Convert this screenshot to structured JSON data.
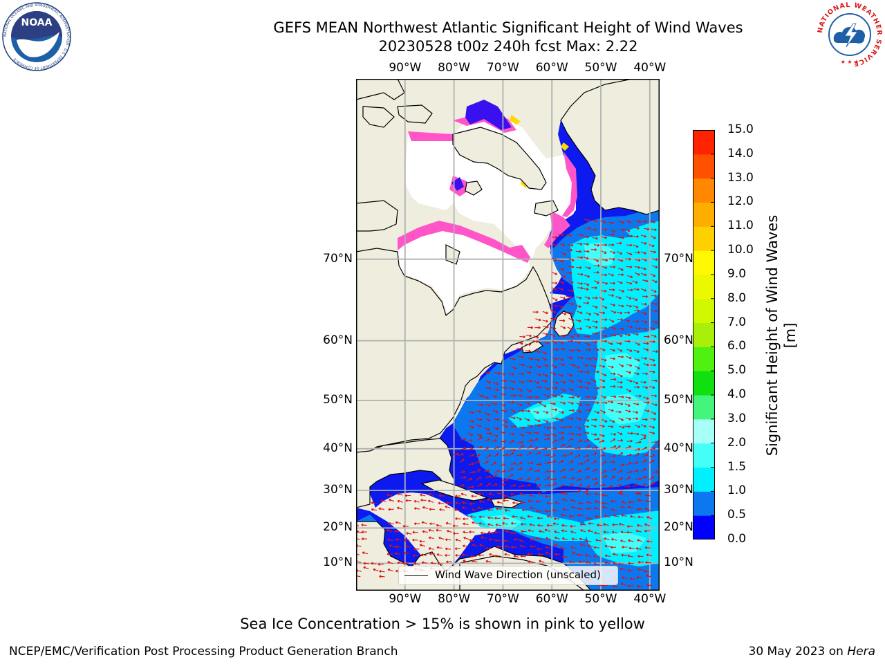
{
  "title": {
    "line1": "GEFS MEAN Northwest Atlantic Significant Height of Wind Waves",
    "line2": "20230528 t00z 240h fcst   Max: 2.22"
  },
  "logos": {
    "left": {
      "name": "NOAA",
      "icon": "noaa-logo",
      "ring_text": "NATIONAL OCEANIC AND ATMOSPHERIC ADMINISTRATION · U.S. DEPARTMENT OF COMMERCE",
      "color": "#1f5fa8"
    },
    "right": {
      "name": "NATIONAL WEATHER SERVICE",
      "icon": "nws-logo",
      "color": "#d91a1a"
    }
  },
  "map": {
    "projection": "Mercator",
    "lon_range": [
      -100,
      -38
    ],
    "lat_range": [
      2,
      82
    ],
    "lon_ticks": [
      "90°W",
      "80°W",
      "70°W",
      "60°W",
      "50°W",
      "40°W"
    ],
    "lat_ticks": [
      "70°N",
      "60°N",
      "50°N",
      "40°N",
      "30°N",
      "20°N",
      "10°N"
    ],
    "grid": true,
    "land_color": "#efedde",
    "ice_color": "#ffffff"
  },
  "colorbar": {
    "label": "Significant Height of Wind Waves [m]",
    "tick_labels": [
      "0.0",
      "0.5",
      "1.0",
      "1.5",
      "2.0",
      "3.0",
      "4.0",
      "5.0",
      "6.0",
      "7.0",
      "8.0",
      "9.0",
      "10.0",
      "11.0",
      "12.0",
      "13.0",
      "14.0",
      "15.0"
    ],
    "colors": [
      "#0000ff",
      "#0c78f0",
      "#00f0ff",
      "#44fff8",
      "#a8fff8",
      "#44f57c",
      "#10e010",
      "#50f010",
      "#a8f00a",
      "#d2f800",
      "#ecf800",
      "#fff800",
      "#ffd000",
      "#ffae00",
      "#ff8800",
      "#ff5000",
      "#ff2200"
    ]
  },
  "legend": {
    "label": "Wind Wave Direction (unscaled)"
  },
  "caption": "Sea Ice Concentration > 15% is shown in pink to yellow",
  "footer": {
    "left": "NCEP/EMC/Verification Post Processing Product Generation Branch",
    "right_prefix": "30 May 2023 on ",
    "right_host": "Hera"
  }
}
